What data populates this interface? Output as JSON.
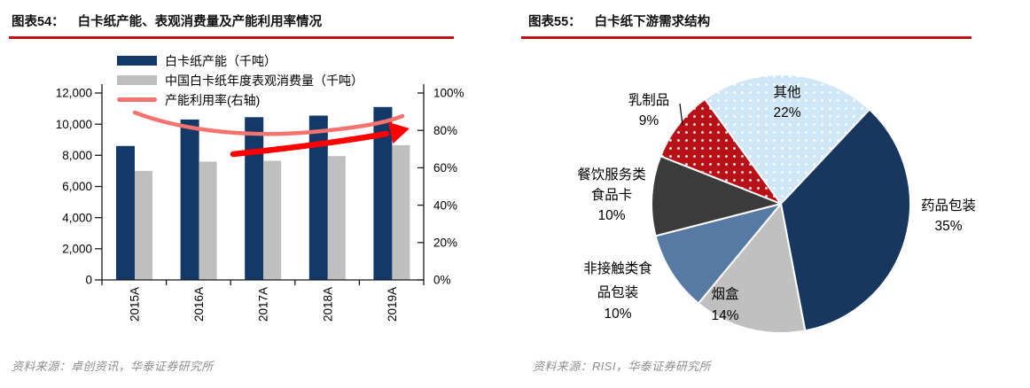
{
  "figures": {
    "left": {
      "label": "图表54：",
      "title": "白卡纸产能、表观消费量及产能利用率情况",
      "source": "资料来源：卓创资讯，华泰证券研究所"
    },
    "right": {
      "label": "图表55：",
      "title": "白卡纸下游需求结构",
      "source": "资料来源：RISI，华泰证券研究所"
    }
  },
  "colors": {
    "title_rule": "#c51218",
    "capacity_bar": "#133968",
    "consumption_bar": "#bfbfbf",
    "utilization_line": "#f3736e",
    "annotation_arrow": "#fd0000",
    "source_text": "#8e8e8e"
  },
  "chart_data": [
    {
      "id": "whitecard-capacity-consumption-utilization",
      "type": "bar",
      "subtype": "combo-bar-line-dual-axis",
      "title": "白卡纸产能、表观消费量及产能利用率情况",
      "categories": [
        "2015A",
        "2016A",
        "2017A",
        "2018A",
        "2019A"
      ],
      "series": [
        {
          "key": "capacity",
          "name": "白卡纸产能（千吨）",
          "type": "bar",
          "axis": "left",
          "color": "#133968",
          "values": [
            8600,
            10300,
            10450,
            10550,
            11100
          ]
        },
        {
          "key": "consumption",
          "name": "中国白卡纸年度表观消费量（千吨）",
          "type": "bar",
          "axis": "left",
          "color": "#bfbfbf",
          "values": [
            7000,
            7600,
            7650,
            7950,
            8650
          ]
        },
        {
          "key": "utilization",
          "name": "产能利用率(右轴)",
          "type": "line",
          "axis": "right",
          "color": "#f3736e",
          "values_pct": [
            81,
            74,
            73,
            75,
            78
          ],
          "style": "hand-drawn swoosh curve plus bright red up-trend arrow annotation"
        }
      ],
      "left_axis": {
        "min": 0,
        "max": 12000,
        "step": 2000,
        "tick_labels": [
          "0",
          "2,000",
          "4,000",
          "6,000",
          "8,000",
          "10,000",
          "12,000"
        ]
      },
      "right_axis": {
        "min": 0,
        "max": 100,
        "step": 20,
        "tick_labels": [
          "0%",
          "20%",
          "40%",
          "60%",
          "80%",
          "100%"
        ]
      },
      "grid": false,
      "legend_position": "top-left"
    },
    {
      "id": "whitecard-downstream-demand",
      "type": "pie",
      "title": "白卡纸下游需求结构",
      "start_angle_deg": -36,
      "direction": "clockwise",
      "slices": [
        {
          "key": "other",
          "label": "其他",
          "pct": 22,
          "color": "#cfe7f6",
          "pattern": "white-dots",
          "label_lines": [
            "其他",
            "22%"
          ]
        },
        {
          "key": "pharma-packaging",
          "label": "药品包装",
          "pct": 35,
          "color": "#17375e",
          "label_lines": [
            "药品包装",
            "35%"
          ]
        },
        {
          "key": "cigarette-box",
          "label": "烟盒",
          "pct": 14,
          "color": "#c0c0c0",
          "label_lines": [
            "烟盒",
            "14%"
          ]
        },
        {
          "key": "non-contact-food-packaging",
          "label": "非接触类食品包装",
          "pct": 10,
          "color": "#567aa4",
          "label_lines": [
            "非接触类食",
            "品包装",
            "10%"
          ]
        },
        {
          "key": "food-service-card",
          "label": "餐饮服务类食品卡",
          "pct": 10,
          "color": "#3b3b3b",
          "label_lines": [
            "餐饮服务类",
            "食品卡",
            "10%"
          ]
        },
        {
          "key": "dairy",
          "label": "乳制品",
          "pct": 9,
          "color": "#b81118",
          "pattern": "white-dots",
          "label_lines": [
            "乳制品",
            "9%"
          ]
        }
      ]
    }
  ]
}
